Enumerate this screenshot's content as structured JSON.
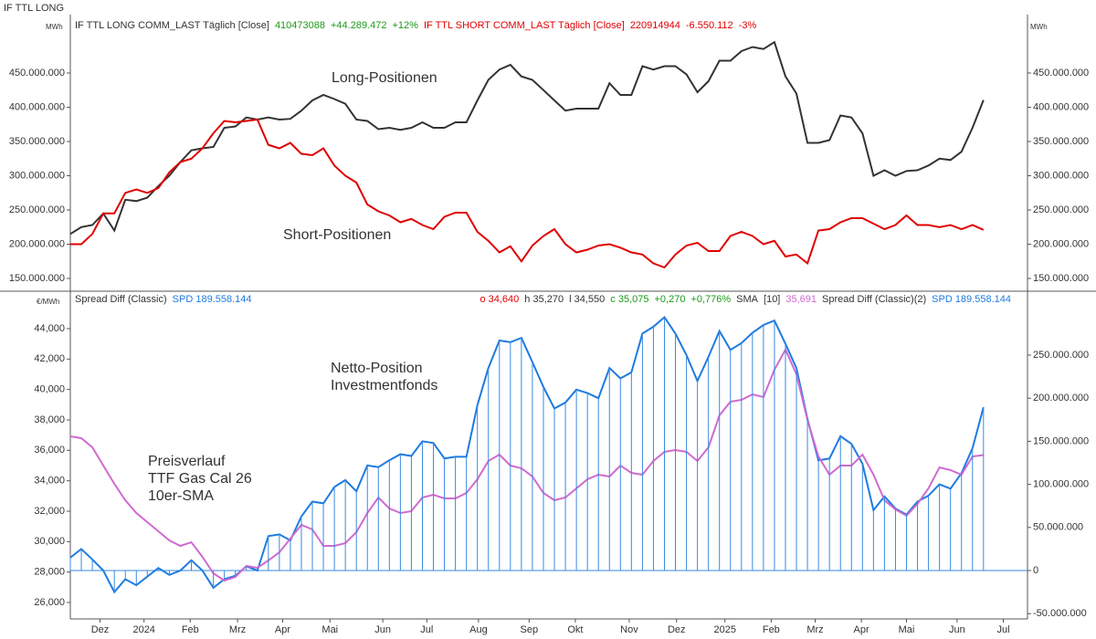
{
  "chart_data": [
    {
      "type": "line",
      "title": "IF TTL LONG",
      "y_unit": "MWh",
      "xlim": [
        0,
        87
      ],
      "ylim": [
        132700000,
        535300000
      ],
      "yticks": [
        {
          "value": 150000000,
          "label": "150.000.000"
        },
        {
          "value": 200000000,
          "label": "200.000.000"
        },
        {
          "value": 250000000,
          "label": "250.000.000"
        },
        {
          "value": 300000000,
          "label": "300.000.000"
        },
        {
          "value": 350000000,
          "label": "350.000.000"
        },
        {
          "value": 400000000,
          "label": "400.000.000"
        },
        {
          "value": 450000000,
          "label": "450.000.000"
        }
      ],
      "series": [
        {
          "name": "IF TTL LONG COMM_LAST Täglich [Close]",
          "color": "#333333",
          "change_color": "#1a9a1a",
          "change_labels": [
            "+44.289.472",
            "+12%"
          ],
          "values": [
            215000000,
            225000000,
            228000000,
            245000000,
            220000000,
            265000000,
            263000000,
            268000000,
            285000000,
            300000000,
            320000000,
            337000000,
            340000000,
            342000000,
            370000000,
            372000000,
            385000000,
            382000000,
            385000000,
            382000000,
            383000000,
            395000000,
            410000000,
            418000000,
            412000000,
            405000000,
            382000000,
            380000000,
            368000000,
            370000000,
            367000000,
            370000000,
            378000000,
            370000000,
            370000000,
            378000000,
            378000000,
            410000000,
            440000000,
            455000000,
            462000000,
            445000000,
            440000000,
            425000000,
            410000000,
            395000000,
            398000000,
            398000000,
            398000000,
            435000000,
            418000000,
            418000000,
            460000000,
            455000000,
            460000000,
            460000000,
            448000000,
            422000000,
            438000000,
            468000000,
            468000000,
            482000000,
            488000000,
            485000000,
            495000000,
            445000000,
            420000000,
            348000000,
            348000000,
            352000000,
            388000000,
            385000000,
            362000000,
            300000000,
            308000000,
            300000000,
            307000000,
            308000000,
            315000000,
            325000000,
            323000000,
            335000000,
            370000000,
            410473088
          ]
        },
        {
          "name": "IF TTL SHORT COMM_LAST Täglich [Close]",
          "color": "#e00000",
          "change_color": "#e00000",
          "change_labels": [
            "-6.550.112",
            "-3%"
          ],
          "values": [
            200000000,
            200000000,
            215000000,
            245000000,
            245000000,
            275000000,
            280000000,
            275000000,
            282000000,
            305000000,
            320000000,
            325000000,
            340000000,
            362000000,
            380000000,
            378000000,
            380000000,
            382000000,
            345000000,
            340000000,
            348000000,
            332000000,
            330000000,
            340000000,
            315000000,
            300000000,
            290000000,
            258000000,
            248000000,
            242000000,
            232000000,
            237000000,
            228000000,
            222000000,
            240000000,
            246000000,
            246000000,
            218000000,
            205000000,
            188000000,
            197000000,
            175000000,
            198000000,
            212000000,
            222000000,
            200000000,
            188000000,
            192000000,
            198000000,
            200000000,
            195000000,
            188000000,
            185000000,
            172000000,
            166000000,
            185000000,
            198000000,
            202000000,
            190000000,
            190000000,
            212000000,
            218000000,
            212000000,
            200000000,
            205000000,
            182000000,
            185000000,
            172000000,
            220000000,
            222000000,
            232000000,
            238000000,
            238000000,
            230000000,
            222000000,
            228000000,
            242000000,
            228000000,
            228000000,
            225000000,
            228000000,
            222000000,
            228000000,
            220914944
          ]
        }
      ],
      "annotations": [
        {
          "lines": [
            "Long-Positionen"
          ],
          "color": "#333333"
        },
        {
          "lines": [
            "Short-Positionen"
          ],
          "color": "#e00000"
        }
      ]
    },
    {
      "type": "combo",
      "y_unit": "€/MWh",
      "xlim": [
        0,
        87
      ],
      "xticks": [
        {
          "value": 2.7,
          "label": "Dez"
        },
        {
          "value": 6.7,
          "label": "2024"
        },
        {
          "value": 10.9,
          "label": "Feb"
        },
        {
          "value": 15.2,
          "label": "Mrz"
        },
        {
          "value": 19.3,
          "label": "Apr"
        },
        {
          "value": 23.6,
          "label": "Mai"
        },
        {
          "value": 28.4,
          "label": "Jun"
        },
        {
          "value": 32.4,
          "label": "Jul"
        },
        {
          "value": 37.1,
          "label": "Aug"
        },
        {
          "value": 41.7,
          "label": "Sep"
        },
        {
          "value": 45.9,
          "label": "Okt"
        },
        {
          "value": 50.8,
          "label": "Nov"
        },
        {
          "value": 55.1,
          "label": "Dez"
        },
        {
          "value": 59.5,
          "label": "2025"
        },
        {
          "value": 63.7,
          "label": "Feb"
        },
        {
          "value": 67.7,
          "label": "Mrz"
        },
        {
          "value": 71.9,
          "label": "Apr"
        },
        {
          "value": 76.0,
          "label": "Mai"
        },
        {
          "value": 80.6,
          "label": "Jun"
        },
        {
          "value": 84.8,
          "label": "Jul"
        }
      ],
      "ylim": [
        24920,
        46400
      ],
      "yticks": [
        {
          "value": 26000,
          "label": "26,000"
        },
        {
          "value": 28000,
          "label": "28,000"
        },
        {
          "value": 30000,
          "label": "30,000"
        },
        {
          "value": 32000,
          "label": "32,000"
        },
        {
          "value": 34000,
          "label": "34,000"
        },
        {
          "value": 36000,
          "label": "36,000"
        },
        {
          "value": 38000,
          "label": "38,000"
        },
        {
          "value": 40000,
          "label": "40,000"
        },
        {
          "value": 42000,
          "label": "42,000"
        },
        {
          "value": 44000,
          "label": "44,000"
        }
      ],
      "y2lim": [
        -56100000,
        323100000
      ],
      "y2ticks": [
        {
          "value": -50000000,
          "label": "-50.000.000"
        },
        0,
        {
          "value": 50000000,
          "label": "50.000.000"
        },
        {
          "value": 100000000,
          "label": "100.000.000"
        },
        {
          "value": 150000000,
          "label": "150.000.000"
        },
        {
          "value": 200000000,
          "label": "200.000.000"
        },
        {
          "value": 250000000,
          "label": "250.000.000"
        }
      ],
      "ohlc_labels": [
        {
          "text": "o 34,640",
          "color": "#e00000"
        },
        {
          "text": "h 35,270",
          "color": "#333333"
        },
        {
          "text": "l 34,550",
          "color": "#333333"
        },
        {
          "text": "c 35,075",
          "color": "#1a9a1a"
        },
        {
          "text": "+0,270",
          "color": "#1a9a1a"
        },
        {
          "text": "+0,776%",
          "color": "#1a9a1a"
        }
      ],
      "series": [
        {
          "name": "Spread Diff (Classic)",
          "style": "line",
          "axis": "y2",
          "color": "#1e7be0",
          "legend_label": "SPD 189.558.144",
          "values": [
            15000000,
            25000000,
            13000000,
            0,
            -25000000,
            -10000000,
            -17000000,
            -7000000,
            3000000,
            -5000000,
            0,
            12000000,
            0,
            -20000000,
            -10000000,
            -6000000,
            5000000,
            0,
            40000000,
            42000000,
            35000000,
            63000000,
            80000000,
            78000000,
            97000000,
            105000000,
            92000000,
            122000000,
            120000000,
            128000000,
            135000000,
            133000000,
            150000000,
            148000000,
            130000000,
            132000000,
            132000000,
            192000000,
            235000000,
            267000000,
            265000000,
            270000000,
            242000000,
            213000000,
            188000000,
            195000000,
            210000000,
            206000000,
            200000000,
            235000000,
            223000000,
            230000000,
            275000000,
            283000000,
            294000000,
            275000000,
            250000000,
            220000000,
            248000000,
            278000000,
            256000000,
            264000000,
            276000000,
            285000000,
            290000000,
            263000000,
            235000000,
            176000000,
            128000000,
            130000000,
            156000000,
            147000000,
            124000000,
            70000000,
            86000000,
            72000000,
            65000000,
            80000000,
            87000000,
            100000000,
            95000000,
            113000000,
            142000000,
            189558144
          ]
        },
        {
          "name": "SMA",
          "style": "line",
          "axis": "y",
          "color": "#d06ad0",
          "params": "[10]",
          "legend_label": "35,691",
          "values": [
            36920,
            36800,
            36200,
            35000,
            33800,
            32720,
            31880,
            31280,
            30680,
            30080,
            29720,
            29960,
            29000,
            27920,
            27440,
            27680,
            28400,
            28280,
            28760,
            29300,
            30200,
            31100,
            30800,
            29720,
            29720,
            29900,
            30620,
            31880,
            32900,
            32180,
            31880,
            32000,
            32900,
            33080,
            32840,
            32840,
            33200,
            34100,
            35300,
            35720,
            35000,
            34820,
            34280,
            33200,
            32720,
            32900,
            33500,
            34100,
            34400,
            34280,
            35000,
            34520,
            34400,
            35300,
            35900,
            36020,
            35900,
            35300,
            36200,
            38300,
            39200,
            39320,
            39680,
            39500,
            41300,
            42620,
            41000,
            38000,
            35600,
            34400,
            35000,
            35000,
            35720,
            34400,
            32720,
            32120,
            31700,
            32480,
            33500,
            34880,
            34700,
            34400,
            35600,
            35691
          ]
        },
        {
          "name": "Spread Diff (Classic)(2)",
          "style": "bar",
          "axis": "y2",
          "color": "#3a8ae0",
          "legend_label": "SPD 189.558.144",
          "values": [
            15000000,
            25000000,
            13000000,
            0,
            -25000000,
            -10000000,
            -17000000,
            -7000000,
            3000000,
            -5000000,
            0,
            12000000,
            0,
            -20000000,
            -10000000,
            -6000000,
            5000000,
            0,
            40000000,
            42000000,
            35000000,
            63000000,
            80000000,
            78000000,
            97000000,
            105000000,
            92000000,
            122000000,
            120000000,
            128000000,
            135000000,
            133000000,
            150000000,
            148000000,
            130000000,
            132000000,
            132000000,
            192000000,
            235000000,
            267000000,
            265000000,
            270000000,
            242000000,
            213000000,
            188000000,
            195000000,
            210000000,
            206000000,
            200000000,
            235000000,
            223000000,
            230000000,
            275000000,
            283000000,
            294000000,
            275000000,
            250000000,
            220000000,
            248000000,
            278000000,
            256000000,
            264000000,
            276000000,
            285000000,
            290000000,
            263000000,
            235000000,
            176000000,
            128000000,
            130000000,
            156000000,
            147000000,
            124000000,
            70000000,
            86000000,
            72000000,
            65000000,
            80000000,
            87000000,
            100000000,
            95000000,
            113000000,
            142000000,
            189558144
          ]
        }
      ],
      "annotations": [
        {
          "lines": [
            "Netto-Position",
            "Investmentfonds"
          ],
          "color": "#3c6fd8"
        },
        {
          "lines": [
            "Preisverlauf",
            "TTF Gas Cal 26",
            "10er-SMA"
          ],
          "color": "#d06ad0"
        }
      ]
    }
  ]
}
